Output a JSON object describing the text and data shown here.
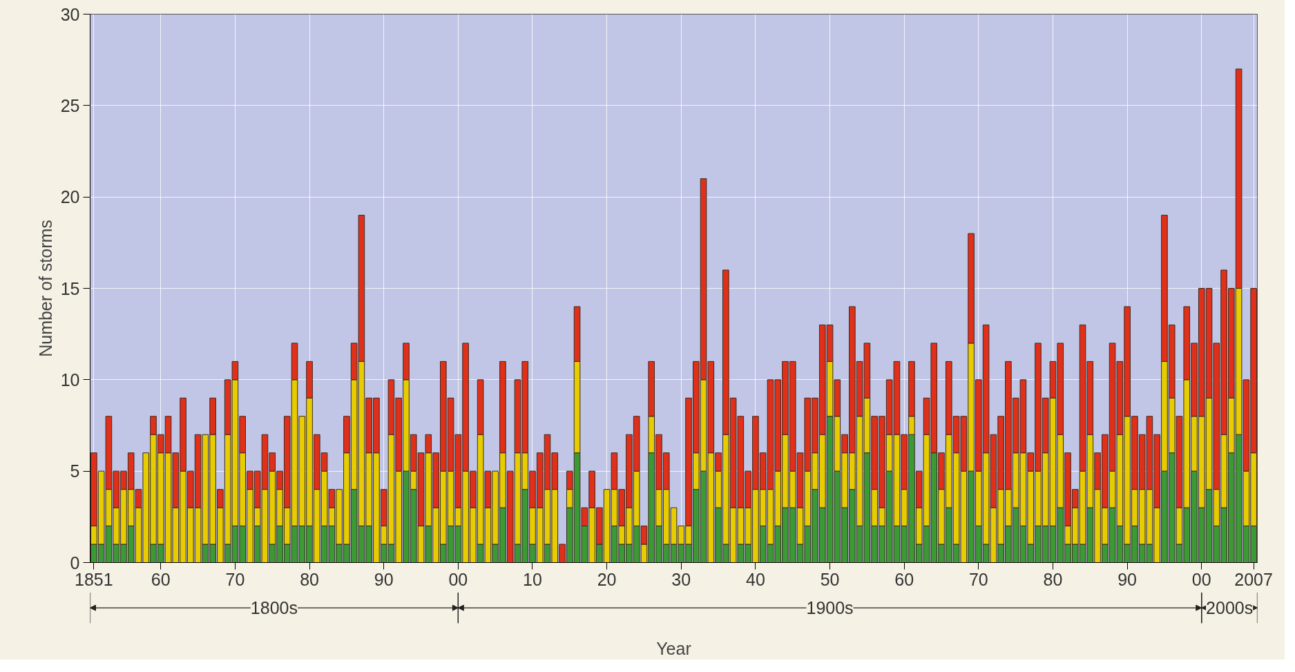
{
  "chart_data": {
    "type": "bar",
    "stacked": true,
    "xlabel": "Year",
    "ylabel": "Number of storms",
    "x": [
      1851,
      1852,
      1853,
      1854,
      1855,
      1856,
      1857,
      1858,
      1859,
      1860,
      1861,
      1862,
      1863,
      1864,
      1865,
      1866,
      1867,
      1868,
      1869,
      1870,
      1871,
      1872,
      1873,
      1874,
      1875,
      1876,
      1877,
      1878,
      1879,
      1880,
      1881,
      1882,
      1883,
      1884,
      1885,
      1886,
      1887,
      1888,
      1889,
      1890,
      1891,
      1892,
      1893,
      1894,
      1895,
      1896,
      1897,
      1898,
      1899,
      1900,
      1901,
      1902,
      1903,
      1904,
      1905,
      1906,
      1907,
      1908,
      1909,
      1910,
      1911,
      1912,
      1913,
      1914,
      1915,
      1916,
      1917,
      1918,
      1919,
      1920,
      1921,
      1922,
      1923,
      1924,
      1925,
      1926,
      1927,
      1928,
      1929,
      1930,
      1931,
      1932,
      1933,
      1934,
      1935,
      1936,
      1937,
      1938,
      1939,
      1940,
      1941,
      1942,
      1943,
      1944,
      1945,
      1946,
      1947,
      1948,
      1949,
      1950,
      1951,
      1952,
      1953,
      1954,
      1955,
      1956,
      1957,
      1958,
      1959,
      1960,
      1961,
      1962,
      1963,
      1964,
      1965,
      1966,
      1967,
      1968,
      1969,
      1970,
      1971,
      1972,
      1973,
      1974,
      1975,
      1976,
      1977,
      1978,
      1979,
      1980,
      1981,
      1982,
      1983,
      1984,
      1985,
      1986,
      1987,
      1988,
      1989,
      1990,
      1991,
      1992,
      1993,
      1994,
      1995,
      1996,
      1997,
      1998,
      1999,
      2000,
      2001,
      2002,
      2003,
      2004,
      2005,
      2006,
      2007
    ],
    "series": [
      {
        "color": "#3c9a34",
        "values": [
          1,
          1,
          2,
          1,
          1,
          2,
          0,
          0,
          1,
          1,
          0,
          0,
          0,
          0,
          0,
          1,
          1,
          0,
          1,
          2,
          2,
          0,
          2,
          0,
          1,
          2,
          1,
          2,
          2,
          2,
          0,
          2,
          2,
          1,
          1,
          4,
          2,
          2,
          0,
          1,
          1,
          0,
          5,
          4,
          0,
          2,
          0,
          1,
          2,
          2,
          0,
          0,
          1,
          0,
          1,
          3,
          0,
          1,
          4,
          1,
          0,
          1,
          0,
          0,
          3,
          6,
          2,
          0,
          1,
          0,
          2,
          1,
          1,
          2,
          0,
          6,
          2,
          1,
          1,
          1,
          1,
          4,
          5,
          0,
          3,
          1,
          0,
          1,
          1,
          0,
          2,
          1,
          2,
          3,
          3,
          1,
          2,
          4,
          3,
          8,
          5,
          3,
          4,
          2,
          6,
          2,
          2,
          5,
          2,
          2,
          7,
          1,
          2,
          6,
          1,
          3,
          1,
          0,
          5,
          2,
          1,
          0,
          1,
          2,
          3,
          2,
          1,
          2,
          2,
          2,
          3,
          1,
          1,
          1,
          3,
          0,
          1,
          3,
          2,
          1,
          2,
          1,
          1,
          0,
          5,
          6,
          1,
          3,
          5,
          3,
          4,
          2,
          3,
          6,
          7,
          2,
          2
        ]
      },
      {
        "color": "#e6cc00",
        "values": [
          1,
          4,
          2,
          2,
          3,
          2,
          3,
          6,
          6,
          5,
          6,
          3,
          5,
          3,
          3,
          6,
          6,
          3,
          6,
          8,
          4,
          4,
          1,
          4,
          4,
          2,
          2,
          8,
          6,
          7,
          4,
          3,
          1,
          3,
          5,
          6,
          9,
          4,
          6,
          1,
          6,
          5,
          5,
          1,
          2,
          4,
          3,
          4,
          3,
          1,
          5,
          3,
          6,
          3,
          4,
          3,
          0,
          5,
          2,
          2,
          3,
          3,
          4,
          0,
          1,
          5,
          0,
          3,
          0,
          4,
          2,
          1,
          2,
          3,
          1,
          2,
          2,
          3,
          2,
          1,
          1,
          2,
          5,
          6,
          2,
          6,
          3,
          2,
          2,
          4,
          2,
          3,
          3,
          4,
          2,
          2,
          3,
          2,
          4,
          3,
          3,
          3,
          2,
          6,
          3,
          2,
          1,
          2,
          5,
          2,
          1,
          2,
          5,
          0,
          3,
          4,
          5,
          5,
          7,
          3,
          5,
          3,
          3,
          2,
          3,
          4,
          4,
          3,
          4,
          7,
          4,
          1,
          2,
          4,
          4,
          4,
          2,
          2,
          5,
          7,
          2,
          3,
          3,
          3,
          6,
          3,
          2,
          7,
          3,
          5,
          5,
          2,
          4,
          3,
          8,
          3,
          4
        ]
      },
      {
        "color": "#e0301a",
        "values": [
          4,
          0,
          4,
          2,
          1,
          2,
          1,
          0,
          1,
          1,
          2,
          3,
          4,
          2,
          4,
          0,
          2,
          1,
          3,
          1,
          2,
          1,
          2,
          3,
          1,
          1,
          5,
          2,
          0,
          2,
          3,
          1,
          1,
          0,
          2,
          2,
          8,
          3,
          3,
          2,
          3,
          4,
          2,
          2,
          4,
          1,
          3,
          6,
          4,
          4,
          7,
          2,
          3,
          2,
          0,
          5,
          5,
          4,
          5,
          2,
          3,
          3,
          2,
          1,
          1,
          3,
          1,
          2,
          2,
          0,
          2,
          2,
          4,
          3,
          1,
          3,
          3,
          2,
          0,
          0,
          7,
          5,
          11,
          5,
          1,
          9,
          6,
          5,
          2,
          4,
          2,
          6,
          5,
          4,
          6,
          3,
          4,
          3,
          6,
          2,
          2,
          1,
          8,
          3,
          3,
          4,
          5,
          3,
          4,
          3,
          3,
          2,
          2,
          6,
          2,
          4,
          2,
          3,
          6,
          5,
          7,
          4,
          4,
          7,
          3,
          4,
          1,
          7,
          3,
          2,
          5,
          4,
          1,
          8,
          4,
          2,
          4,
          7,
          4,
          6,
          4,
          3,
          4,
          4,
          8,
          4,
          5,
          4,
          4,
          7,
          6,
          8,
          9,
          6,
          12,
          5,
          9
        ]
      }
    ],
    "xlim": [
      1850.5,
      2007.5
    ],
    "xticks": [
      {
        "value": 1851,
        "label": "1851"
      },
      {
        "value": 1860,
        "label": "60"
      },
      {
        "value": 1870,
        "label": "70"
      },
      {
        "value": 1880,
        "label": "80"
      },
      {
        "value": 1890,
        "label": "90"
      },
      {
        "value": 1900,
        "label": "00"
      },
      {
        "value": 1910,
        "label": "10"
      },
      {
        "value": 1920,
        "label": "20"
      },
      {
        "value": 1930,
        "label": "30"
      },
      {
        "value": 1940,
        "label": "40"
      },
      {
        "value": 1950,
        "label": "50"
      },
      {
        "value": 1960,
        "label": "60"
      },
      {
        "value": 1970,
        "label": "70"
      },
      {
        "value": 1980,
        "label": "80"
      },
      {
        "value": 1990,
        "label": "90"
      },
      {
        "value": 2000,
        "label": "00"
      },
      {
        "value": 2007,
        "label": "2007"
      }
    ],
    "ylim": [
      0,
      30
    ],
    "yticks": [
      0,
      5,
      10,
      15,
      20,
      25,
      30
    ],
    "grid": true,
    "annotations": [
      "1800s",
      "1900s",
      "2000s"
    ]
  }
}
